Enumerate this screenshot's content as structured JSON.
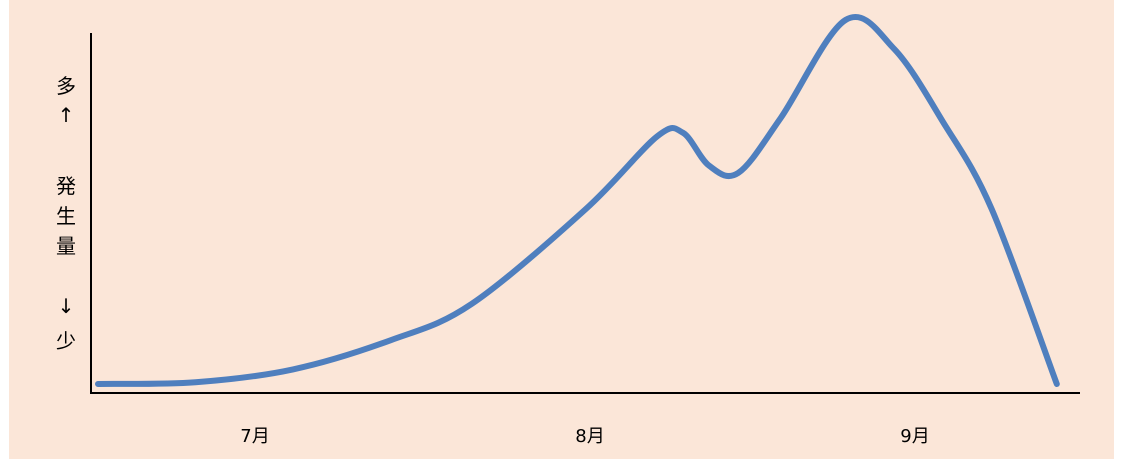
{
  "chart_data": {
    "type": "line",
    "title": "",
    "xlabel": "",
    "ylabel": "発生量",
    "y_axis_high": "多",
    "y_axis_low": "少",
    "y_arrow_up": "↑",
    "y_arrow_down": "↓",
    "categories": [
      "7月",
      "8月",
      "9月"
    ],
    "xlim": [
      0,
      3
    ],
    "ylim": [
      0,
      100
    ],
    "y_ticks_shown": false,
    "grid": false,
    "series": [
      {
        "color": "#4f7fbe",
        "x": [
          0.0,
          0.3,
          0.6,
          0.9,
          1.15,
          1.5,
          1.72,
          1.8,
          1.88,
          1.97,
          2.1,
          2.3,
          2.45,
          2.6,
          2.75,
          2.95
        ],
        "y": [
          0,
          0.5,
          4,
          12,
          22,
          48,
          68,
          69,
          60,
          58,
          73,
          100,
          92,
          72,
          48,
          0
        ]
      }
    ]
  }
}
